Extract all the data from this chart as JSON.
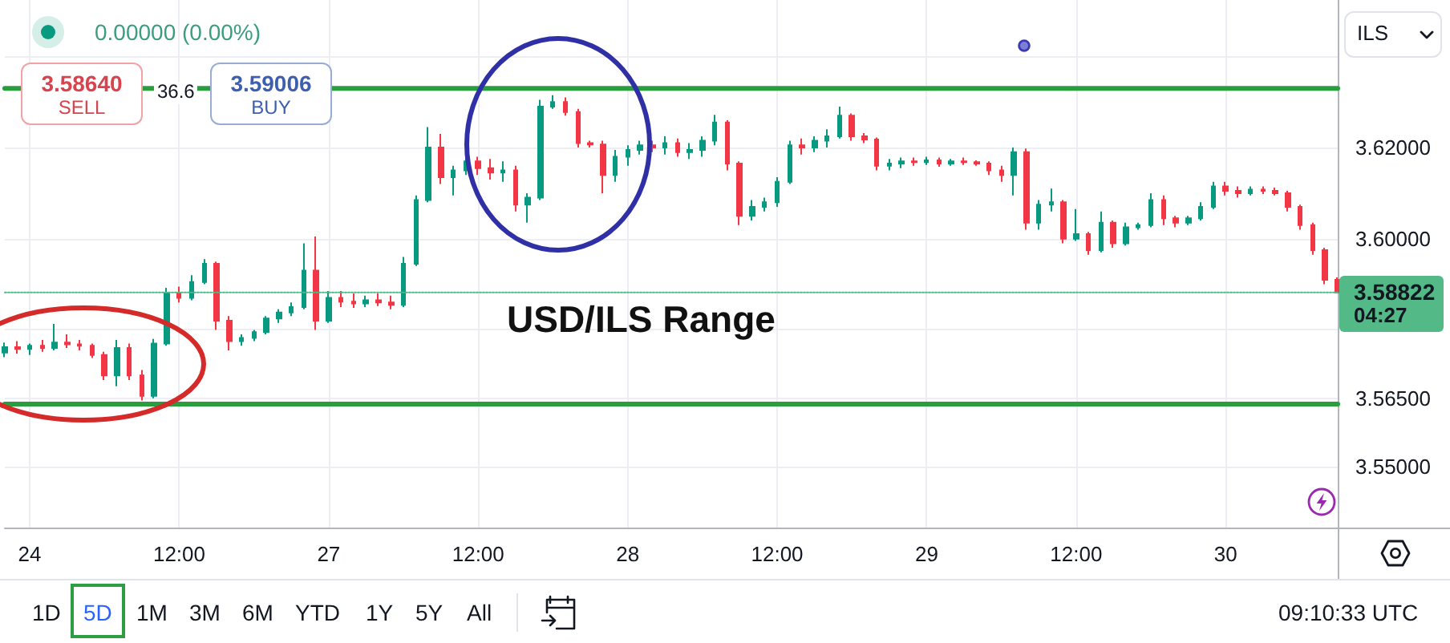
{
  "chart_data": {
    "type": "candlestick",
    "categories": [
      null,
      null,
      "24",
      null,
      null,
      null,
      null,
      null,
      null,
      null,
      null,
      null,
      null,
      null,
      "12:00",
      null,
      null,
      null,
      null,
      null,
      null,
      null,
      null,
      null,
      null,
      null,
      "27",
      null,
      null,
      null,
      null,
      null,
      null,
      null,
      null,
      null,
      null,
      null,
      "12:00",
      null,
      null,
      null,
      null,
      null,
      null,
      null,
      null,
      null,
      null,
      null,
      "28",
      null,
      null,
      null,
      null,
      null,
      null,
      null,
      null,
      null,
      null,
      null,
      "12:00",
      null,
      null,
      null,
      null,
      null,
      null,
      null,
      null,
      null,
      null,
      null,
      "29",
      null,
      null,
      null,
      null,
      null,
      null,
      null,
      null,
      null,
      null,
      null,
      "12:00",
      null,
      null,
      null,
      null,
      null,
      null,
      null,
      null,
      null,
      null,
      null,
      "30",
      null,
      null,
      null,
      null,
      null,
      null,
      null,
      null,
      null
    ],
    "ohlc": [
      [
        3.575,
        3.5772,
        3.574,
        3.5762
      ],
      [
        3.5762,
        3.5775,
        3.5748,
        3.5758
      ],
      [
        3.5758,
        3.577,
        3.5745,
        3.5765
      ],
      [
        3.5765,
        3.5778,
        3.5752,
        3.576
      ],
      [
        3.576,
        3.5813,
        3.5755,
        3.5772
      ],
      [
        3.5772,
        3.579,
        3.576,
        3.5768
      ],
      [
        3.5768,
        3.5778,
        3.5755,
        3.5765
      ],
      [
        3.5765,
        3.577,
        3.5738,
        3.5745
      ],
      [
        3.5745,
        3.5752,
        3.569,
        3.57
      ],
      [
        3.57,
        3.5778,
        3.5676,
        3.576
      ],
      [
        3.576,
        3.577,
        3.569,
        3.57
      ],
      [
        3.57,
        3.5712,
        3.5645,
        3.5655
      ],
      [
        3.5655,
        3.578,
        3.565,
        3.577
      ],
      [
        3.577,
        3.5892,
        3.5765,
        3.588
      ],
      [
        3.588,
        3.5895,
        3.586,
        3.587
      ],
      [
        3.587,
        3.592,
        3.5865,
        3.5905
      ],
      [
        3.5905,
        3.5955,
        3.59,
        3.5945
      ],
      [
        3.5945,
        3.595,
        3.58,
        3.582
      ],
      [
        3.582,
        3.583,
        3.5755,
        3.5775
      ],
      [
        3.5775,
        3.579,
        3.5765,
        3.5782
      ],
      [
        3.5782,
        3.58,
        3.5775,
        3.5795
      ],
      [
        3.5795,
        3.583,
        3.579,
        3.5825
      ],
      [
        3.5825,
        3.5845,
        3.5815,
        3.5838
      ],
      [
        3.5838,
        3.586,
        3.583,
        3.585
      ],
      [
        3.585,
        3.599,
        3.5845,
        3.593
      ],
      [
        3.593,
        3.6005,
        3.58,
        3.582
      ],
      [
        3.582,
        3.5885,
        3.5815,
        3.587
      ],
      [
        3.587,
        3.5885,
        3.585,
        3.5862
      ],
      [
        3.5862,
        3.588,
        3.5848,
        3.5858
      ],
      [
        3.5858,
        3.5875,
        3.585,
        3.5865
      ],
      [
        3.5865,
        3.588,
        3.5852,
        3.586
      ],
      [
        3.586,
        3.5875,
        3.5845,
        3.5855
      ],
      [
        3.5855,
        3.596,
        3.585,
        3.5945
      ],
      [
        3.5945,
        3.6095,
        3.594,
        3.6085
      ],
      [
        3.6085,
        3.6245,
        3.608,
        3.62
      ],
      [
        3.62,
        3.623,
        3.612,
        3.6135
      ],
      [
        3.6135,
        3.616,
        3.6095,
        3.615
      ],
      [
        3.615,
        3.6185,
        3.614,
        3.617
      ],
      [
        3.617,
        3.618,
        3.614,
        3.6155
      ],
      [
        3.6155,
        3.6175,
        3.613,
        3.6145
      ],
      [
        3.6145,
        3.617,
        3.6125,
        3.615
      ],
      [
        3.615,
        3.616,
        3.606,
        3.6075
      ],
      [
        3.6075,
        3.61,
        3.6035,
        3.609
      ],
      [
        3.609,
        3.6305,
        3.6085,
        3.629
      ],
      [
        3.629,
        3.6315,
        3.6285,
        3.63
      ],
      [
        3.63,
        3.631,
        3.627,
        3.6278
      ],
      [
        3.6278,
        3.6285,
        3.62,
        3.621
      ],
      [
        3.621,
        3.6215,
        3.62,
        3.6207
      ],
      [
        3.6207,
        3.6215,
        3.61,
        3.614
      ],
      [
        3.614,
        3.6195,
        3.6125,
        3.618
      ],
      [
        3.618,
        3.6205,
        3.616,
        3.6195
      ],
      [
        3.6195,
        3.6215,
        3.6185,
        3.6205
      ],
      [
        3.6205,
        3.6215,
        3.619,
        3.62
      ],
      [
        3.62,
        3.6225,
        3.6185,
        3.621
      ],
      [
        3.621,
        3.622,
        3.618,
        3.619
      ],
      [
        3.619,
        3.621,
        3.6175,
        3.6195
      ],
      [
        3.6195,
        3.6225,
        3.618,
        3.6215
      ],
      [
        3.6215,
        3.6272,
        3.6205,
        3.6255
      ],
      [
        3.6255,
        3.626,
        3.615,
        3.6165
      ],
      [
        3.6165,
        3.617,
        3.603,
        3.605
      ],
      [
        3.605,
        3.6085,
        3.604,
        3.607
      ],
      [
        3.607,
        3.609,
        3.606,
        3.608
      ],
      [
        3.608,
        3.6135,
        3.607,
        3.6125
      ],
      [
        3.6125,
        3.6215,
        3.612,
        3.6205
      ],
      [
        3.6205,
        3.622,
        3.6185,
        3.62
      ],
      [
        3.62,
        3.6225,
        3.619,
        3.6215
      ],
      [
        3.6215,
        3.624,
        3.62,
        3.6225
      ],
      [
        3.6225,
        3.629,
        3.622,
        3.627
      ],
      [
        3.627,
        3.6275,
        3.6215,
        3.6225
      ],
      [
        3.6225,
        3.6232,
        3.621,
        3.6218
      ],
      [
        3.6218,
        3.6222,
        3.615,
        3.616
      ],
      [
        3.616,
        3.6175,
        3.615,
        3.6165
      ],
      [
        3.6165,
        3.6178,
        3.6155,
        3.617
      ],
      [
        3.617,
        3.6178,
        3.616,
        3.6168
      ],
      [
        3.6168,
        3.618,
        3.6162,
        3.6172
      ],
      [
        3.6172,
        3.6178,
        3.6158,
        3.6165
      ],
      [
        3.6165,
        3.6175,
        3.616,
        3.617
      ],
      [
        3.617,
        3.6178,
        3.6162,
        3.6168
      ],
      [
        3.6168,
        3.6172,
        3.616,
        3.6165
      ],
      [
        3.6165,
        3.617,
        3.614,
        3.615
      ],
      [
        3.615,
        3.616,
        3.6125,
        3.614
      ],
      [
        3.614,
        3.62,
        3.6095,
        3.619
      ],
      [
        3.619,
        3.6198,
        3.602,
        3.6035
      ],
      [
        3.6035,
        3.6085,
        3.602,
        3.6075
      ],
      [
        3.6075,
        3.611,
        3.606,
        3.608
      ],
      [
        3.608,
        3.6085,
        3.599,
        3.6
      ],
      [
        3.6,
        3.6065,
        3.5995,
        3.601
      ],
      [
        3.601,
        3.6015,
        3.5965,
        3.5975
      ],
      [
        3.5975,
        3.606,
        3.597,
        3.6035
      ],
      [
        3.6035,
        3.604,
        3.598,
        3.599
      ],
      [
        3.599,
        3.6035,
        3.5985,
        3.6025
      ],
      [
        3.6025,
        3.6035,
        3.602,
        3.603
      ],
      [
        3.603,
        3.61,
        3.6025,
        3.6085
      ],
      [
        3.6085,
        3.6095,
        3.603,
        3.6045
      ],
      [
        3.6045,
        3.605,
        3.6025,
        3.6035
      ],
      [
        3.6035,
        3.605,
        3.603,
        3.6045
      ],
      [
        3.6045,
        3.608,
        3.604,
        3.607
      ],
      [
        3.607,
        3.6125,
        3.6065,
        3.6115
      ],
      [
        3.6115,
        3.6125,
        3.6095,
        3.6105
      ],
      [
        3.6105,
        3.6115,
        3.609,
        3.61
      ],
      [
        3.61,
        3.6115,
        3.6095,
        3.6108
      ],
      [
        3.6108,
        3.6115,
        3.6098,
        3.6105
      ],
      [
        3.6105,
        3.6112,
        3.6095,
        3.61
      ],
      [
        3.61,
        3.6105,
        3.606,
        3.607
      ],
      [
        3.607,
        3.6075,
        3.602,
        3.603
      ],
      [
        3.603,
        3.6035,
        3.5965,
        3.5975
      ],
      [
        3.5975,
        3.598,
        3.59,
        3.591
      ],
      [
        3.591,
        3.5915,
        3.588,
        3.58822
      ]
    ],
    "colors": [
      "#089981",
      "#f23645",
      "#089981",
      "#f23645",
      "#089981",
      "#f23645",
      "#f23645",
      "#f23645",
      "#f23645",
      "#089981",
      "#f23645",
      "#f23645",
      "#089981",
      "#089981",
      "#f23645",
      "#089981",
      "#089981",
      "#f23645",
      "#f23645",
      "#089981",
      "#089981",
      "#089981",
      "#089981",
      "#089981",
      "#089981",
      "#f23645",
      "#089981",
      "#f23645",
      "#f23645",
      "#089981",
      "#f23645",
      "#f23645",
      "#089981",
      "#089981",
      "#089981",
      "#f23645",
      "#089981",
      "#089981",
      "#f23645",
      "#f23645",
      "#089981",
      "#f23645",
      "#089981",
      "#089981",
      "#089981",
      "#f23645",
      "#f23645",
      "#f23645",
      "#f23645",
      "#089981",
      "#089981",
      "#089981",
      "#f23645",
      "#089981",
      "#f23645",
      "#089981",
      "#089981",
      "#089981",
      "#f23645",
      "#f23645",
      "#089981",
      "#089981",
      "#089981",
      "#089981",
      "#f23645",
      "#089981",
      "#089981",
      "#089981",
      "#f23645",
      "#f23645",
      "#f23645",
      "#089981",
      "#089981",
      "#f23645",
      "#089981",
      "#f23645",
      "#089981",
      "#f23645",
      "#f23645",
      "#f23645",
      "#f23645",
      "#089981",
      "#f23645",
      "#089981",
      "#089981",
      "#f23645",
      "#089981",
      "#f23645",
      "#089981",
      "#f23645",
      "#089981",
      "#089981",
      "#089981",
      "#f23645",
      "#f23645",
      "#089981",
      "#089981",
      "#089981",
      "#f23645",
      "#f23645",
      "#089981",
      "#f23645",
      "#f23645",
      "#f23645",
      "#f23645",
      "#f23645",
      "#f23645",
      "#f23645"
    ],
    "ylim": [
      3.5366,
      3.6524
    ],
    "yticks": [
      {
        "value": 3.55,
        "label": "3.55000"
      },
      {
        "value": 3.565,
        "label": "3.56500"
      },
      {
        "value": 3.58,
        "label": null
      },
      {
        "value": 3.6,
        "label": "3.60000"
      },
      {
        "value": 3.62,
        "label": "3.62000"
      },
      {
        "value": 3.64,
        "label": null
      }
    ],
    "grid": true,
    "ref_lines": [
      {
        "axis": "y",
        "value": 3.633,
        "color": "#2a9d3e",
        "line_style": "solid"
      },
      {
        "axis": "y",
        "value": 3.5637,
        "color": "#2a9d3e",
        "line_style": "solid"
      },
      {
        "axis": "y",
        "value": 3.58822,
        "label": "3.58822",
        "color": "#53b987",
        "line_style": "dotted"
      }
    ],
    "annotations": [
      "0.00000 (0.00%)",
      "3.58640",
      "SELL",
      "36.6",
      "3.59006",
      "BUY",
      "ILS",
      "USD/ILS Range",
      "04:27",
      "1D",
      "5D",
      "1M",
      "3M",
      "6M",
      "YTD",
      "1Y",
      "5Y",
      "All",
      "09:10:33 UTC"
    ]
  }
}
